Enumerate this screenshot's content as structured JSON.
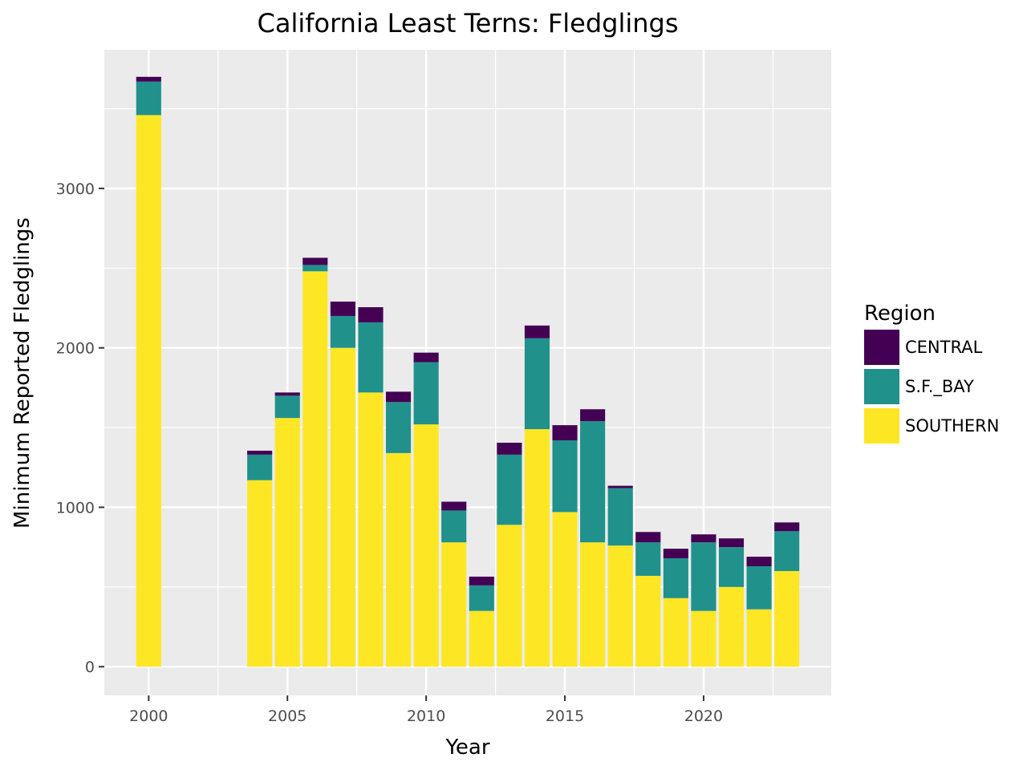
{
  "chart_data": {
    "type": "bar",
    "stacked": true,
    "title": "California Least Terns: Fledglings",
    "xlabel": "Year",
    "ylabel": "Minimum Reported Fledglings",
    "x": [
      2000,
      2004,
      2005,
      2006,
      2007,
      2008,
      2009,
      2010,
      2011,
      2012,
      2013,
      2014,
      2015,
      2016,
      2017,
      2018,
      2019,
      2020,
      2021,
      2022,
      2023
    ],
    "series": [
      {
        "name": "SOUTHERN",
        "color": "#FDE725",
        "values": [
          3460,
          1170,
          1560,
          2480,
          2000,
          1720,
          1340,
          1520,
          780,
          350,
          890,
          1490,
          970,
          780,
          760,
          570,
          430,
          350,
          500,
          360,
          600
        ]
      },
      {
        "name": "S.F._BAY",
        "color": "#21918C",
        "values": [
          210,
          160,
          140,
          40,
          200,
          440,
          320,
          390,
          200,
          160,
          440,
          570,
          450,
          760,
          360,
          210,
          250,
          430,
          250,
          270,
          250
        ]
      },
      {
        "name": "CENTRAL",
        "color": "#440154",
        "values": [
          30,
          25,
          20,
          45,
          90,
          95,
          65,
          60,
          55,
          55,
          75,
          80,
          95,
          75,
          15,
          65,
          60,
          50,
          55,
          60,
          55
        ]
      }
    ],
    "xlim": [
      1998.4,
      2024.6
    ],
    "ylim": [
      -180,
      3870
    ],
    "x_ticks": [
      2000,
      2005,
      2010,
      2015,
      2020
    ],
    "y_ticks": [
      0,
      1000,
      2000,
      3000
    ],
    "grid": true,
    "legend": {
      "title": "Region",
      "position": "right",
      "entries": [
        {
          "label": "CENTRAL",
          "color": "#440154"
        },
        {
          "label": "S.F._BAY",
          "color": "#21918C"
        },
        {
          "label": "SOUTHERN",
          "color": "#FDE725"
        }
      ]
    },
    "panel_background": "#EBEBEB",
    "grid_color": "#FFFFFF"
  }
}
